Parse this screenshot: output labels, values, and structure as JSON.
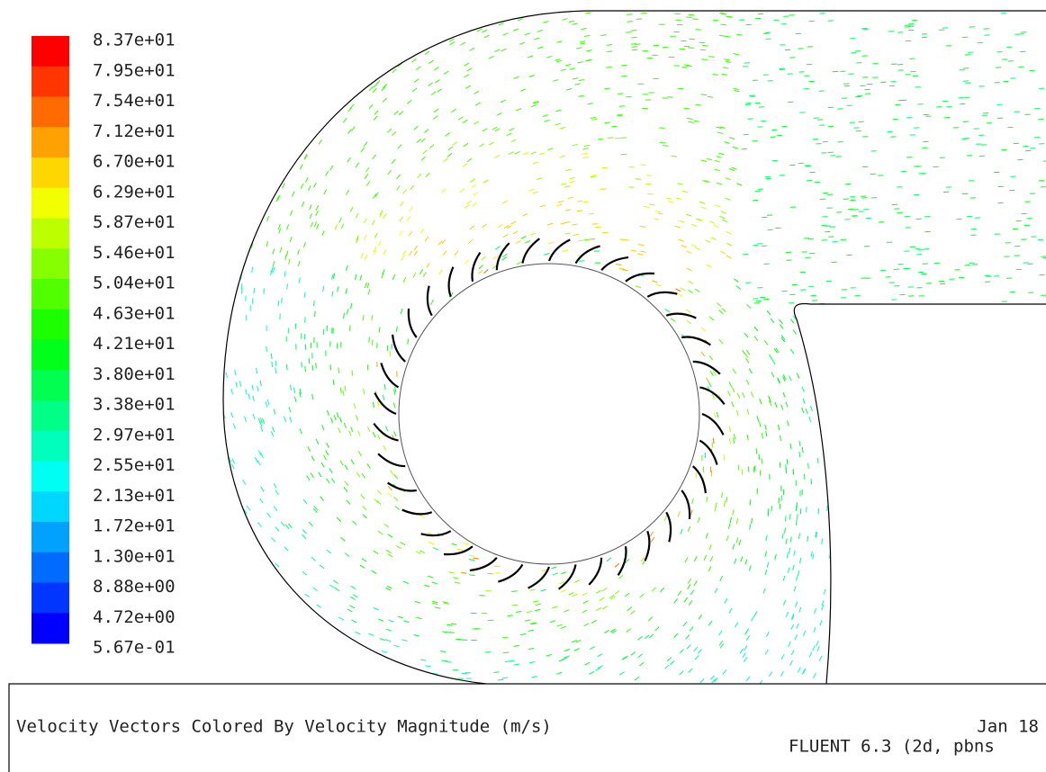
{
  "colorbar": {
    "labels": [
      "8.37e+01",
      "7.95e+01",
      "7.54e+01",
      "7.12e+01",
      "6.70e+01",
      "6.29e+01",
      "5.87e+01",
      "5.46e+01",
      "5.04e+01",
      "4.63e+01",
      "4.21e+01",
      "3.80e+01",
      "3.38e+01",
      "2.97e+01",
      "2.55e+01",
      "2.13e+01",
      "1.72e+01",
      "1.30e+01",
      "8.88e+00",
      "4.72e+00",
      "5.67e-01"
    ]
  },
  "footer": {
    "title": "Velocity Vectors Colored By Velocity Magnitude (m/s)",
    "date": "Jan 18",
    "solver": "FLUENT 6.3 (2d, pbns"
  }
}
